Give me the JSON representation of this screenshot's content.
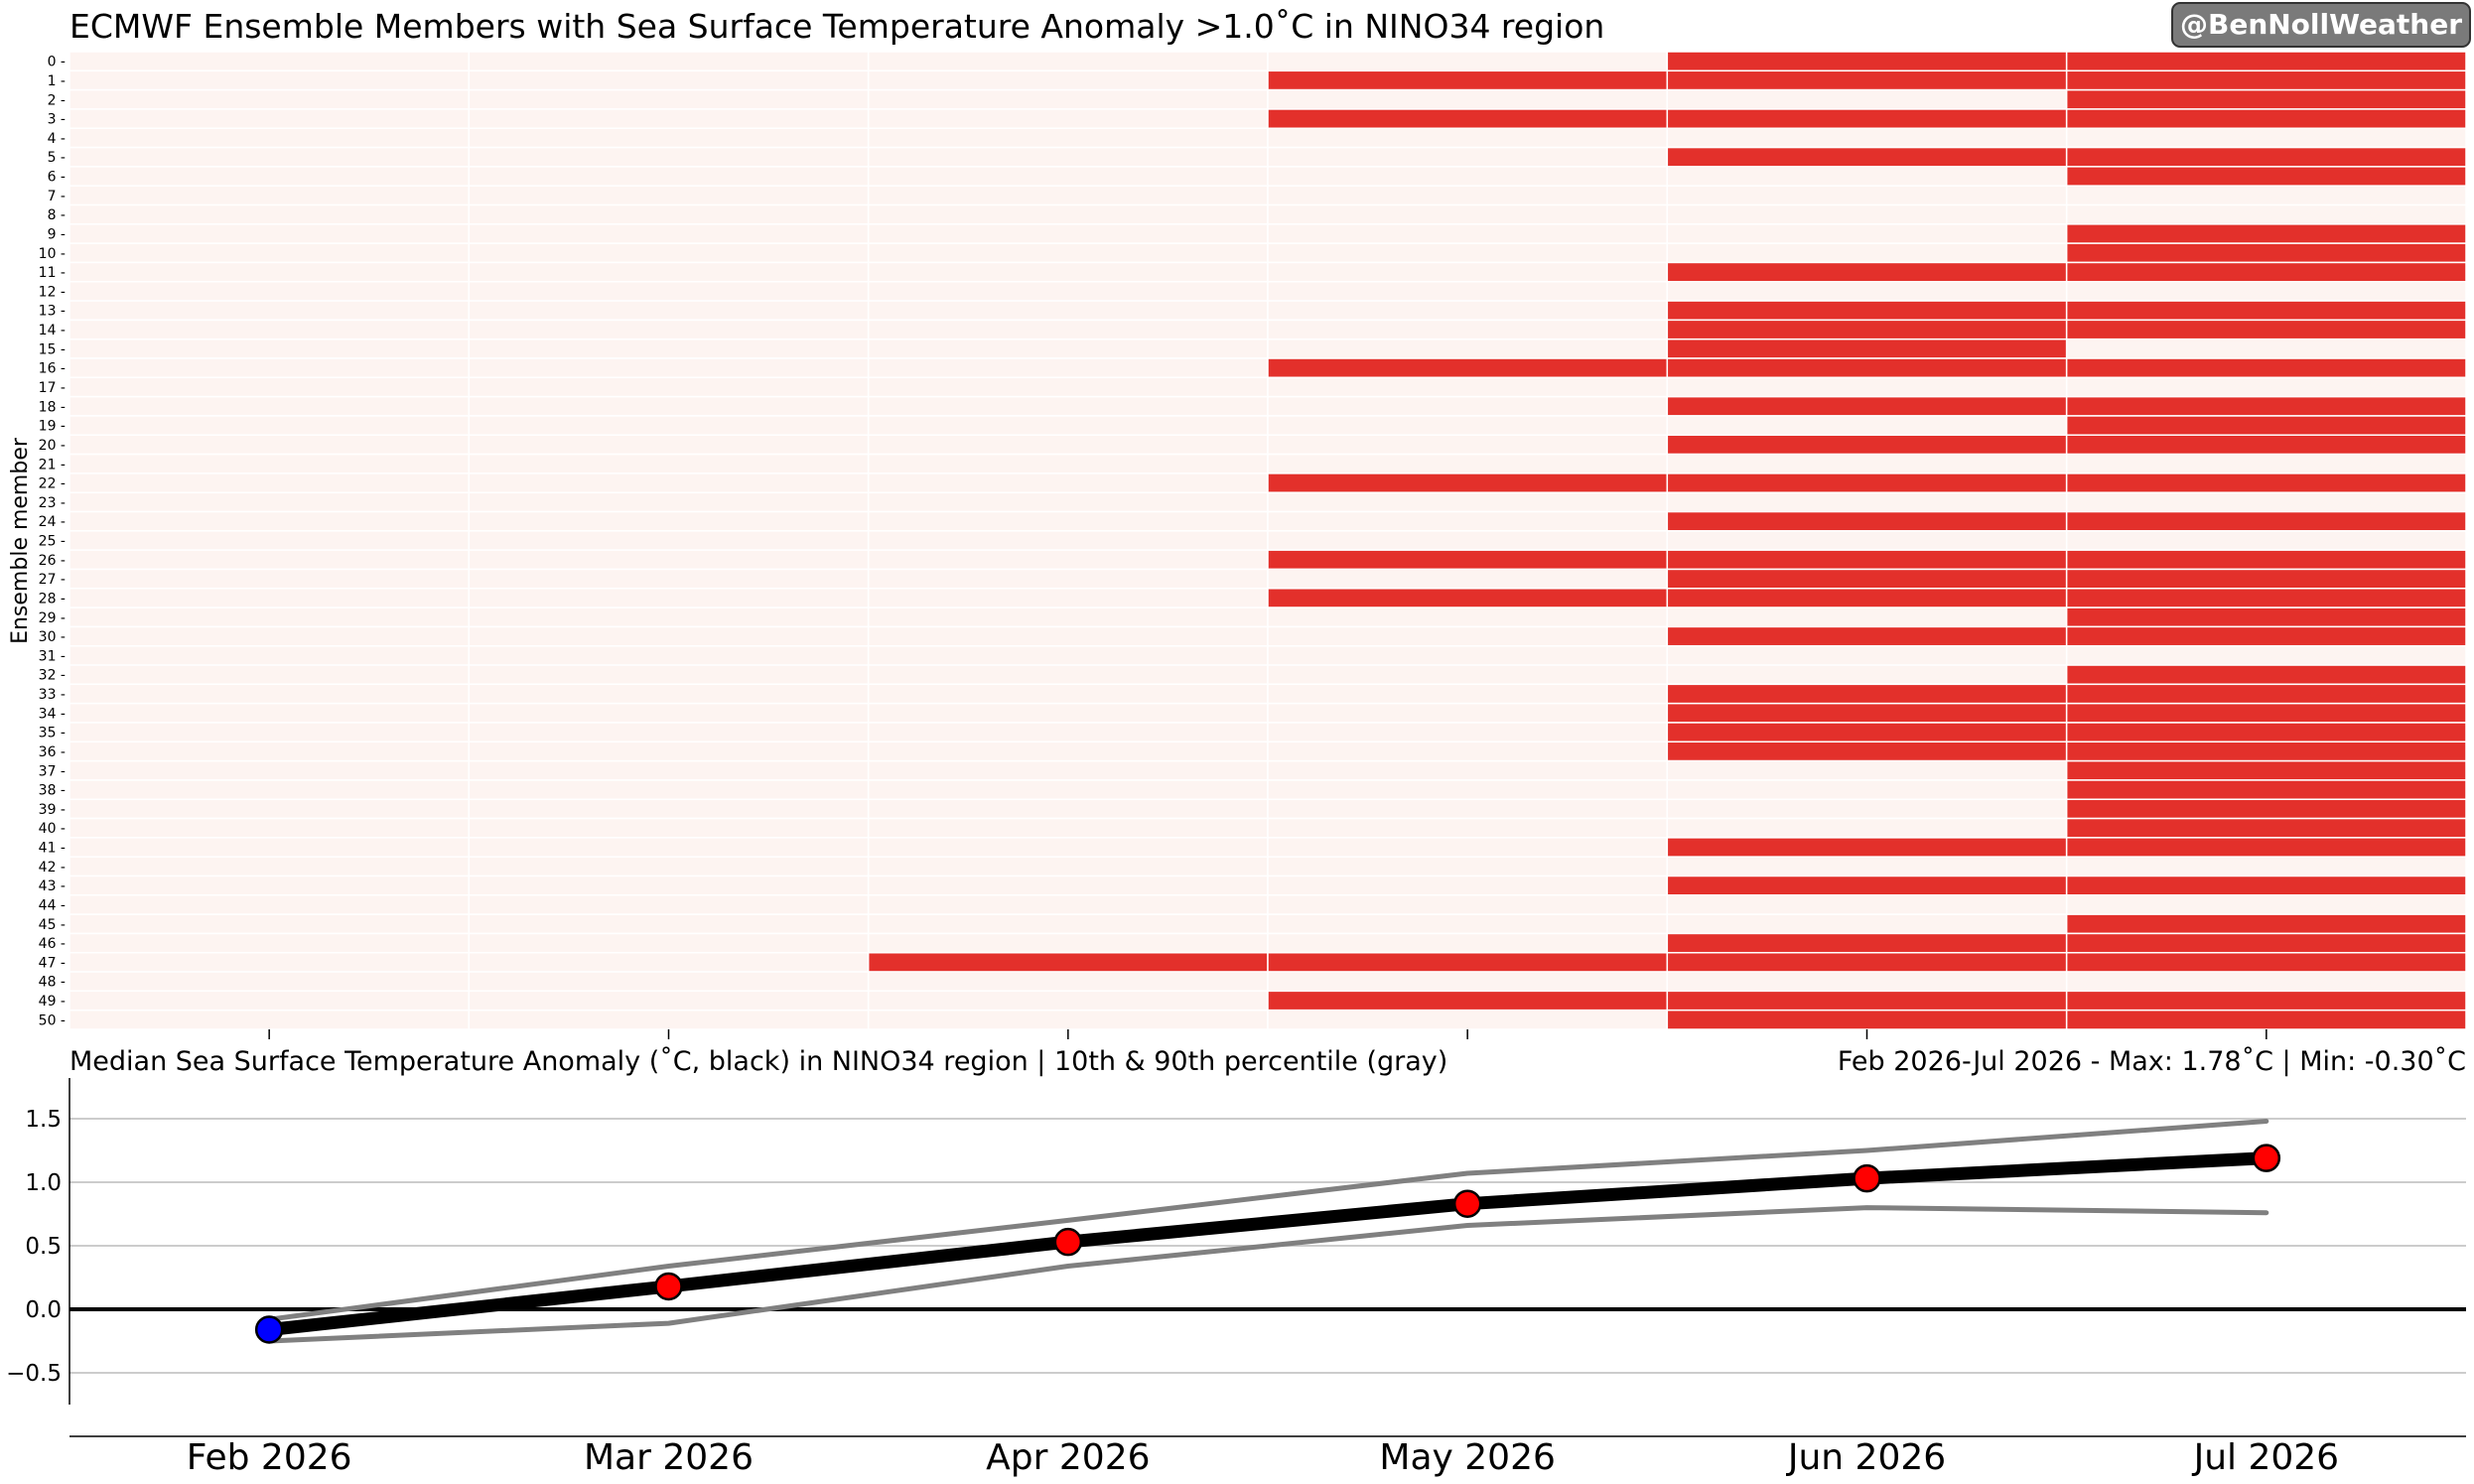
{
  "heatmap": {
    "title": "ECMWF Ensemble Members with Sea Surface Temperature Anomaly >1.0˚C in NINO34 region",
    "ylabel": "Ensemble member",
    "members": [
      0,
      1,
      2,
      3,
      4,
      5,
      6,
      7,
      8,
      9,
      10,
      11,
      12,
      13,
      14,
      15,
      16,
      17,
      18,
      19,
      20,
      21,
      22,
      23,
      24,
      25,
      26,
      27,
      28,
      29,
      30,
      31,
      32,
      33,
      34,
      35,
      36,
      37,
      38,
      39,
      40,
      41,
      42,
      43,
      44,
      45,
      46,
      47,
      48,
      49,
      50
    ]
  },
  "watermark": "@BenNollWeather",
  "bottom": {
    "title": "Median Sea Surface Temperature Anomaly (˚C, black) in NINO34 region | 10th & 90th percentile (gray)",
    "summary": "Feb 2026-Jul 2026 - Max: 1.78˚C | Min: -0.30˚C"
  },
  "chart_data": [
    {
      "type": "heatmap",
      "title": "ECMWF Ensemble Members with Sea Surface Temperature Anomaly >1.0˚C in NINO34 region",
      "ylabel": "Ensemble member",
      "columns": [
        "Feb 2026",
        "Mar 2026",
        "Apr 2026",
        "May 2026",
        "Jun 2026",
        "Jul 2026"
      ],
      "exceed_by_month": {
        "Feb 2026": [],
        "Mar 2026": [],
        "Apr 2026": [
          47
        ],
        "May 2026": [
          1,
          3,
          16,
          22,
          26,
          28,
          47,
          49
        ],
        "Jun 2026": [
          0,
          1,
          3,
          5,
          11,
          13,
          14,
          15,
          16,
          18,
          20,
          22,
          24,
          26,
          27,
          28,
          30,
          33,
          34,
          35,
          36,
          41,
          43,
          46,
          47,
          49,
          50
        ],
        "Jul 2026": [
          0,
          1,
          2,
          3,
          5,
          6,
          9,
          10,
          11,
          13,
          14,
          16,
          18,
          19,
          20,
          22,
          24,
          26,
          27,
          28,
          29,
          30,
          32,
          33,
          34,
          35,
          36,
          37,
          38,
          39,
          40,
          41,
          43,
          45,
          46,
          47,
          49,
          50
        ]
      },
      "colors": {
        "exceed": "#e3302b",
        "not_exceed": "#fdf4f1"
      }
    },
    {
      "type": "line",
      "title": "Median Sea Surface Temperature Anomaly (˚C, black) in NINO34 region | 10th & 90th percentile (gray)",
      "categories": [
        "Feb 2026",
        "Mar 2026",
        "Apr 2026",
        "May 2026",
        "Jun 2026",
        "Jul 2026"
      ],
      "series": [
        {
          "name": "median",
          "values": [
            -0.16,
            0.18,
            0.53,
            0.83,
            1.03,
            1.19
          ],
          "color": "#000000"
        },
        {
          "name": "90th percentile",
          "values": [
            -0.08,
            0.34,
            0.7,
            1.07,
            1.25,
            1.48
          ],
          "color": "#808080"
        },
        {
          "name": "10th percentile",
          "values": [
            -0.25,
            -0.11,
            0.34,
            0.66,
            0.8,
            0.76
          ],
          "color": "#808080"
        }
      ],
      "marker_colors": [
        "#0000ff",
        "#ff0000",
        "#ff0000",
        "#ff0000",
        "#ff0000",
        "#ff0000"
      ],
      "yticks": [
        -0.5,
        0.0,
        0.5,
        1.0,
        1.5
      ],
      "ylim": [
        -0.75,
        1.82
      ],
      "grid": true
    }
  ]
}
